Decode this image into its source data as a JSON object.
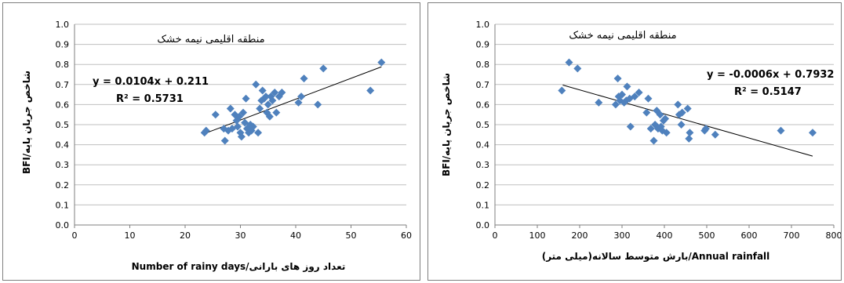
{
  "chart_data": [
    {
      "type": "scatter",
      "title": "منطقه اقلیمی نیمه خشک",
      "xlabel": "Number of rainy days/تعداد روز های بارانی",
      "ylabel": "BFI/شاخص جریان پایه",
      "xlim": [
        0,
        60
      ],
      "ylim": [
        0,
        1
      ],
      "xticks": [
        "0",
        "10",
        "20",
        "30",
        "40",
        "50",
        "60"
      ],
      "yticks": [
        "0.0",
        "0.1",
        "0.2",
        "0.3",
        "0.4",
        "0.5",
        "0.6",
        "0.7",
        "0.8",
        "0.9",
        "1.0"
      ],
      "grid": true,
      "marker_color": "#4f81bd",
      "equation": "y = 0.0104x + 0.211",
      "r_squared": "R² = 0.5731",
      "trendline": {
        "slope": 0.0104,
        "intercept": 0.211,
        "x_range": [
          23.5,
          55.5
        ]
      },
      "points": [
        [
          23.5,
          0.46
        ],
        [
          23.8,
          0.47
        ],
        [
          25.5,
          0.55
        ],
        [
          27,
          0.48
        ],
        [
          27.2,
          0.42
        ],
        [
          27.8,
          0.47
        ],
        [
          28.2,
          0.58
        ],
        [
          28.5,
          0.48
        ],
        [
          29,
          0.55
        ],
        [
          29.3,
          0.52
        ],
        [
          29.5,
          0.49
        ],
        [
          29.8,
          0.54
        ],
        [
          30,
          0.46
        ],
        [
          30.2,
          0.44
        ],
        [
          30.5,
          0.56
        ],
        [
          30.8,
          0.51
        ],
        [
          31,
          0.63
        ],
        [
          31.2,
          0.48
        ],
        [
          31.5,
          0.46
        ],
        [
          31.8,
          0.5
        ],
        [
          32,
          0.47
        ],
        [
          32.3,
          0.49
        ],
        [
          32.8,
          0.7
        ],
        [
          33.2,
          0.46
        ],
        [
          33.5,
          0.58
        ],
        [
          33.8,
          0.62
        ],
        [
          34,
          0.67
        ],
        [
          34.3,
          0.63
        ],
        [
          34.6,
          0.64
        ],
        [
          34.8,
          0.56
        ],
        [
          35,
          0.6
        ],
        [
          35.3,
          0.54
        ],
        [
          35.5,
          0.64
        ],
        [
          35.8,
          0.62
        ],
        [
          36.2,
          0.66
        ],
        [
          36.5,
          0.56
        ],
        [
          37,
          0.64
        ],
        [
          37.5,
          0.66
        ],
        [
          40.5,
          0.61
        ],
        [
          41,
          0.64
        ],
        [
          41.5,
          0.73
        ],
        [
          44,
          0.6
        ],
        [
          45,
          0.78
        ],
        [
          53.5,
          0.67
        ],
        [
          55.5,
          0.81
        ]
      ]
    },
    {
      "type": "scatter",
      "title": "منطقه اقلیمی نیمه خشک",
      "xlabel": "بارش متوسط سالانه(میلی متر)/Annual rainfall",
      "ylabel": "BFI/شاخص جریان پایه",
      "xlim": [
        0,
        800
      ],
      "ylim": [
        0,
        1
      ],
      "xticks": [
        "0",
        "100",
        "200",
        "300",
        "400",
        "500",
        "600",
        "700",
        "800"
      ],
      "yticks": [
        "0.0",
        "0.1",
        "0.2",
        "0.3",
        "0.4",
        "0.5",
        "0.6",
        "0.7",
        "0.8",
        "0.9",
        "1.0"
      ],
      "grid": true,
      "marker_color": "#4f81bd",
      "equation": "y = -0.0006x + 0.7932",
      "r_squared": "R² = 0.5147",
      "trendline": {
        "slope": -0.0006,
        "intercept": 0.7932,
        "x_range": [
          160,
          750
        ]
      },
      "points": [
        [
          158,
          0.67
        ],
        [
          175,
          0.81
        ],
        [
          195,
          0.78
        ],
        [
          245,
          0.61
        ],
        [
          285,
          0.6
        ],
        [
          290,
          0.73
        ],
        [
          292,
          0.64
        ],
        [
          295,
          0.62
        ],
        [
          300,
          0.65
        ],
        [
          305,
          0.61
        ],
        [
          310,
          0.62
        ],
        [
          312,
          0.69
        ],
        [
          318,
          0.63
        ],
        [
          320,
          0.49
        ],
        [
          330,
          0.64
        ],
        [
          340,
          0.66
        ],
        [
          358,
          0.56
        ],
        [
          362,
          0.63
        ],
        [
          368,
          0.48
        ],
        [
          375,
          0.42
        ],
        [
          378,
          0.5
        ],
        [
          382,
          0.57
        ],
        [
          385,
          0.48
        ],
        [
          390,
          0.55
        ],
        [
          392,
          0.49
        ],
        [
          395,
          0.47
        ],
        [
          398,
          0.52
        ],
        [
          402,
          0.53
        ],
        [
          405,
          0.46
        ],
        [
          432,
          0.6
        ],
        [
          435,
          0.55
        ],
        [
          440,
          0.5
        ],
        [
          442,
          0.56
        ],
        [
          455,
          0.58
        ],
        [
          458,
          0.43
        ],
        [
          460,
          0.46
        ],
        [
          495,
          0.47
        ],
        [
          498,
          0.48
        ],
        [
          520,
          0.45
        ],
        [
          675,
          0.47
        ],
        [
          750,
          0.46
        ]
      ]
    }
  ]
}
